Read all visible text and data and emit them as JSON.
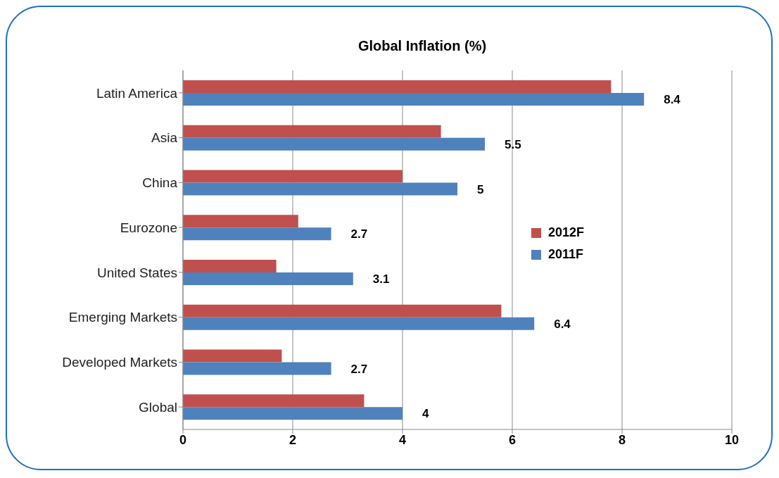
{
  "chart_data": {
    "type": "bar",
    "orientation": "horizontal",
    "title": "Global Inflation (%)",
    "categories": [
      "Latin America",
      "Asia",
      "China",
      "Eurozone",
      "United States",
      "Emerging Markets",
      "Developed Markets",
      "Global"
    ],
    "series": [
      {
        "name": "2012F",
        "color": "#c0504d",
        "values": [
          7.8,
          4.7,
          4.0,
          2.1,
          1.7,
          5.8,
          1.8,
          3.3
        ]
      },
      {
        "name": "2011F",
        "color": "#4f81bd",
        "values": [
          8.4,
          5.5,
          5,
          2.7,
          3.1,
          6.4,
          2.7,
          4
        ],
        "value_labels": [
          "8.4",
          "5.5",
          "5",
          "2.7",
          "3.1",
          "6.4",
          "2.7",
          "4"
        ]
      }
    ],
    "xlim": [
      0,
      10
    ],
    "xticks": [
      0,
      2,
      4,
      6,
      8,
      10
    ],
    "grid": "x",
    "legend": "right"
  }
}
